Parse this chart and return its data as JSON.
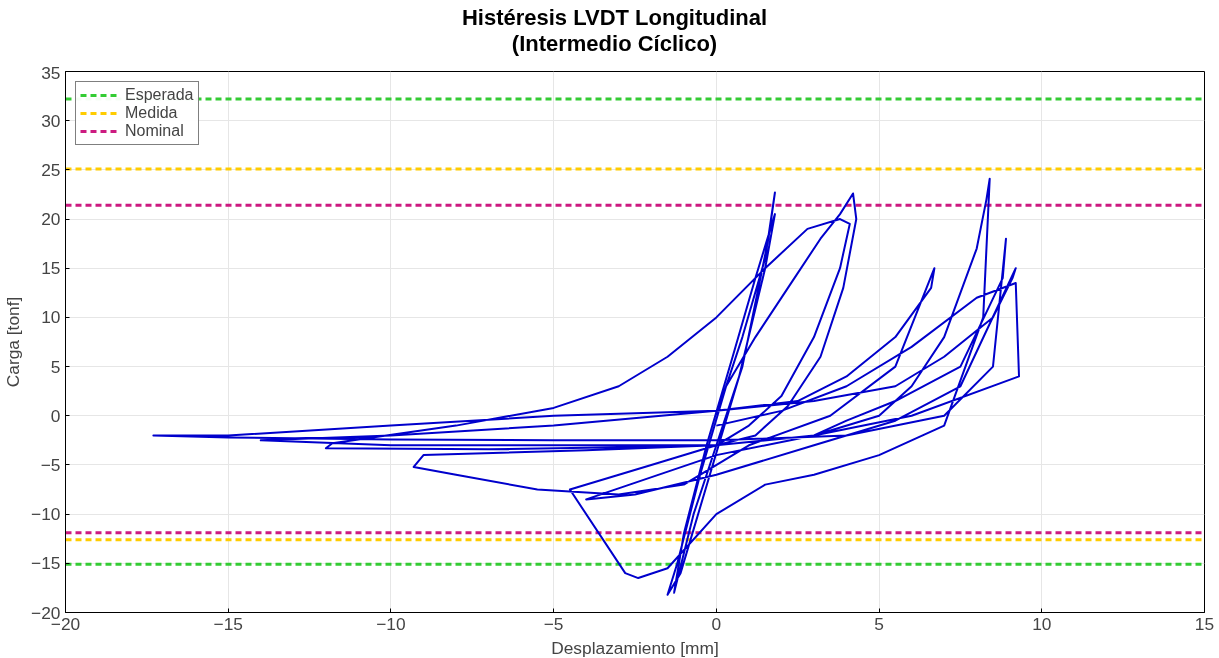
{
  "chart_data": {
    "type": "line",
    "title": "Histéresis LVDT Longitudinal\n(Intermedio Cíclico)",
    "xlabel": "Desplazamiento [mm]",
    "ylabel": "Carga [tonf]",
    "xlim": [
      -20,
      15
    ],
    "xticks": [
      -20,
      -15,
      -10,
      -5,
      0,
      5,
      10,
      15
    ],
    "ylim": [
      -20,
      35
    ],
    "yticks": [
      -20,
      -15,
      -10,
      -5,
      0,
      5,
      10,
      15,
      20,
      25,
      30,
      35
    ],
    "grid": true,
    "legend": "top left",
    "line_style": "solid",
    "marker": "none",
    "series": [
      {
        "color": "#0000cc",
        "x": [
          0,
          0.8,
          1.5,
          1.8,
          1.6,
          0.8,
          0,
          -0.7,
          -1.3,
          -1.0,
          -0.3,
          0.5,
          1.2,
          1.8,
          1.5,
          0.7,
          -0.2,
          -1.1,
          -1.5,
          -1.2,
          -0.5,
          0.3,
          1.2,
          2.2,
          3.2,
          3.8,
          4.2,
          4.3,
          3.9,
          3.2,
          2.2,
          1.2,
          0,
          -3,
          -7,
          -12,
          -11.8,
          -8,
          -5,
          -3,
          -1.5,
          0,
          1.5,
          2.8,
          3.8,
          4.1,
          3.8,
          3,
          2,
          1,
          0,
          -2,
          -4.5,
          -2.8,
          -2.4,
          -1.5,
          0,
          1.5,
          3,
          5,
          7,
          8.2,
          8.4,
          8.3,
          8,
          7,
          6,
          5,
          3,
          0,
          -4,
          -9,
          -9.3,
          -8,
          -5.5,
          -3,
          -1,
          1,
          3.5,
          5.5,
          6.7,
          6.6,
          5.5,
          4,
          2.5,
          0,
          -5,
          -10,
          -15,
          -17.3,
          -15,
          -10,
          -5,
          0,
          4,
          7,
          8.5,
          8.9,
          8.8,
          7.5,
          5.5,
          4,
          3,
          0,
          -4,
          -2.5,
          0,
          3,
          5.5,
          7.5,
          9.2,
          9.1,
          8.5,
          7,
          5.5,
          3,
          0,
          -5,
          -10,
          -14,
          -10,
          -5,
          0,
          3,
          6,
          9.3,
          9.2,
          8,
          6,
          4,
          2,
          0
        ],
        "values": [
          0,
          8,
          16,
          22.7,
          18,
          5,
          -3,
          -10,
          -18,
          -12,
          -3,
          6,
          14,
          20.5,
          15,
          4,
          -6,
          -16,
          -18.2,
          -15,
          -6,
          3,
          8,
          13,
          18,
          20.5,
          22.6,
          20,
          13,
          6,
          1,
          -2,
          -3,
          -3.2,
          -3.4,
          -3.3,
          -2.8,
          -1,
          0.8,
          3,
          6,
          10,
          15,
          19,
          20,
          19.5,
          15,
          8,
          2,
          -1,
          -3,
          -5,
          -7.5,
          -16,
          -16.5,
          -15.5,
          -10,
          -7,
          -6,
          -4,
          -1,
          10,
          24.1,
          22,
          17,
          8,
          3,
          0,
          -2,
          -3,
          -3.5,
          -4,
          -5.2,
          -6,
          -7.5,
          -8,
          -7,
          -3,
          0,
          5,
          15,
          13,
          8,
          4,
          1.5,
          0.5,
          0,
          -1,
          -2,
          -2,
          -2.2,
          -2.4,
          -2.5,
          -2.5,
          -2,
          0,
          5,
          18,
          14,
          5,
          1.5,
          -0.5,
          -2,
          -4,
          -8.5,
          -8,
          -6,
          -3,
          -0.5,
          3,
          15,
          14,
          10,
          6,
          3,
          1.5,
          0.5,
          -1,
          -2,
          -2.5,
          -3,
          -3,
          -3,
          -2,
          0,
          4,
          13.5,
          12,
          7,
          3,
          0.5,
          -1
        ]
      }
    ],
    "ref_lines": [
      {
        "axis": "y",
        "value": 32.2,
        "label": "Esperada",
        "color": "#33cc33",
        "line_style": "dashed"
      },
      {
        "axis": "y",
        "value": -15.1,
        "label": null,
        "color": "#33cc33",
        "line_style": "dashed"
      },
      {
        "axis": "y",
        "value": 25.1,
        "label": "Medida",
        "color": "#ffcc00",
        "line_style": "dashed"
      },
      {
        "axis": "y",
        "value": -12.6,
        "label": null,
        "color": "#ffcc00",
        "line_style": "dashed"
      },
      {
        "axis": "y",
        "value": 21.4,
        "label": "Nominal",
        "color": "#cc1a80",
        "line_style": "dashed"
      },
      {
        "axis": "y",
        "value": -11.9,
        "label": null,
        "color": "#cc1a80",
        "line_style": "dashed"
      }
    ]
  }
}
